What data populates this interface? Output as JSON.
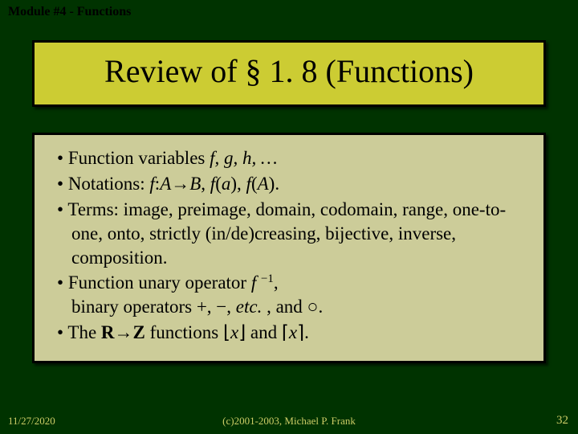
{
  "header": {
    "module": "Module #4 - Functions"
  },
  "title": {
    "text": "Review of § 1. 8 (Functions)",
    "background_color": "#cccc33",
    "font_size": 40
  },
  "content_box": {
    "background_color": "#cccc99",
    "border_color": "#000000"
  },
  "bullets": {
    "b1_label": "Function variables ",
    "b1_vars": "f, g, h, … ",
    "b2_pre": "Notations: ",
    "b2_n1a": "f",
    "b2_n1b": ":",
    "b2_n1c": "A",
    "b2_arrow": "→",
    "b2_n1d": "B, f",
    "b2_n1e": "(",
    "b2_n1f": "a",
    "b2_n1g": "), ",
    "b2_n1h": "f",
    "b2_n1i": "(",
    "b2_n1j": "A",
    "b2_n1k": ").",
    "b3": "Terms: image, preimage, domain, codomain, range, one-to-one, onto, strictly (in/de)creasing, bijective, inverse, composition.",
    "b4_a": "Function unary operator ",
    "b4_f": "f ",
    "b4_sup": "−1",
    "b4_b": ",",
    "b4_c": "binary operators +, −, ",
    "b4_d": "etc.",
    "b4_e": " , and ○.",
    "b5_a": "The ",
    "b5_R": "R",
    "b5_arrow": "→",
    "b5_Z": "Z",
    "b5_b": " functions ",
    "b5_floor_o": "⌊",
    "b5_x1": "x",
    "b5_floor_c": "⌋",
    "b5_and": " and ",
    "b5_ceil_o": "⌈",
    "b5_x2": "x",
    "b5_ceil_c": "⌉",
    "b5_dot": "."
  },
  "footer": {
    "date": "11/27/2020",
    "copyright": "(c)2001-2003, Michael P. Frank",
    "page": "32"
  },
  "colors": {
    "slide_bg": "#003300",
    "footer_text": "#cccc66"
  }
}
